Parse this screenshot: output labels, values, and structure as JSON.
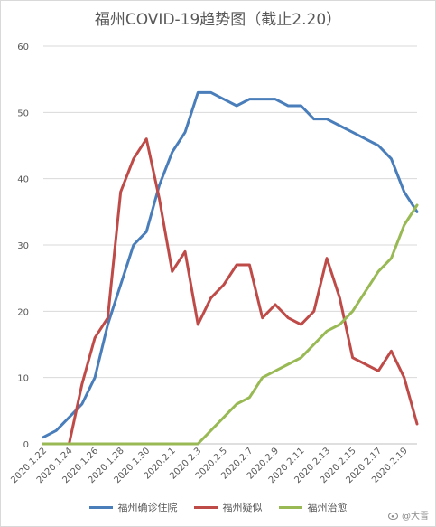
{
  "chart_data": {
    "type": "line",
    "title": "福州COVID-19趋势图（截止2.20）",
    "xlabel": "",
    "ylabel": "",
    "ylim": [
      0,
      60
    ],
    "yticks": [
      0,
      10,
      20,
      30,
      40,
      50,
      60
    ],
    "grid": "horizontal",
    "legend": "bottom",
    "x": [
      "2020.1.22",
      "2020.1.23",
      "2020.1.24",
      "2020.1.25",
      "2020.1.26",
      "2020.1.27",
      "2020.1.28",
      "2020.1.29",
      "2020.1.30",
      "2020.1.31",
      "2020.2.1",
      "2020.2.2",
      "2020.2.3",
      "2020.2.4",
      "2020.2.5",
      "2020.2.6",
      "2020.2.7",
      "2020.2.8",
      "2020.2.9",
      "2020.2.10",
      "2020.2.11",
      "2020.2.12",
      "2020.2.13",
      "2020.2.14",
      "2020.2.15",
      "2020.2.16",
      "2020.2.17",
      "2020.2.18",
      "2020.2.19",
      "2020.2.20"
    ],
    "xtick_labels": [
      "2020.1.22",
      "2020.1.24",
      "2020.1.26",
      "2020.1.28",
      "2020.1.30",
      "2020.2.1",
      "2020.2.3",
      "2020.2.5",
      "2020.2.7",
      "2020.2.9",
      "2020.2.11",
      "2020.2.13",
      "2020.2.15",
      "2020.2.17",
      "2020.2.19"
    ],
    "series": [
      {
        "name": "福州确诊住院",
        "color": "#4a7ebb",
        "values": [
          1,
          2,
          4,
          6,
          10,
          18,
          24,
          30,
          32,
          39,
          44,
          47,
          53,
          53,
          52,
          51,
          52,
          52,
          52,
          51,
          51,
          49,
          49,
          48,
          47,
          46,
          45,
          43,
          38,
          35
        ]
      },
      {
        "name": "福州疑似",
        "color": "#be4b48",
        "values": [
          0,
          0,
          0,
          9,
          16,
          19,
          38,
          43,
          46,
          37,
          26,
          29,
          18,
          22,
          24,
          27,
          27,
          19,
          21,
          19,
          18,
          20,
          28,
          22,
          13,
          12,
          11,
          14,
          10,
          3
        ]
      },
      {
        "name": "福州治愈",
        "color": "#98b954",
        "values": [
          0,
          0,
          0,
          0,
          0,
          0,
          0,
          0,
          0,
          0,
          0,
          0,
          0,
          2,
          4,
          6,
          7,
          10,
          11,
          12,
          13,
          15,
          17,
          18,
          20,
          23,
          26,
          28,
          33,
          36
        ]
      }
    ]
  },
  "watermark": {
    "text": "@大雪"
  }
}
